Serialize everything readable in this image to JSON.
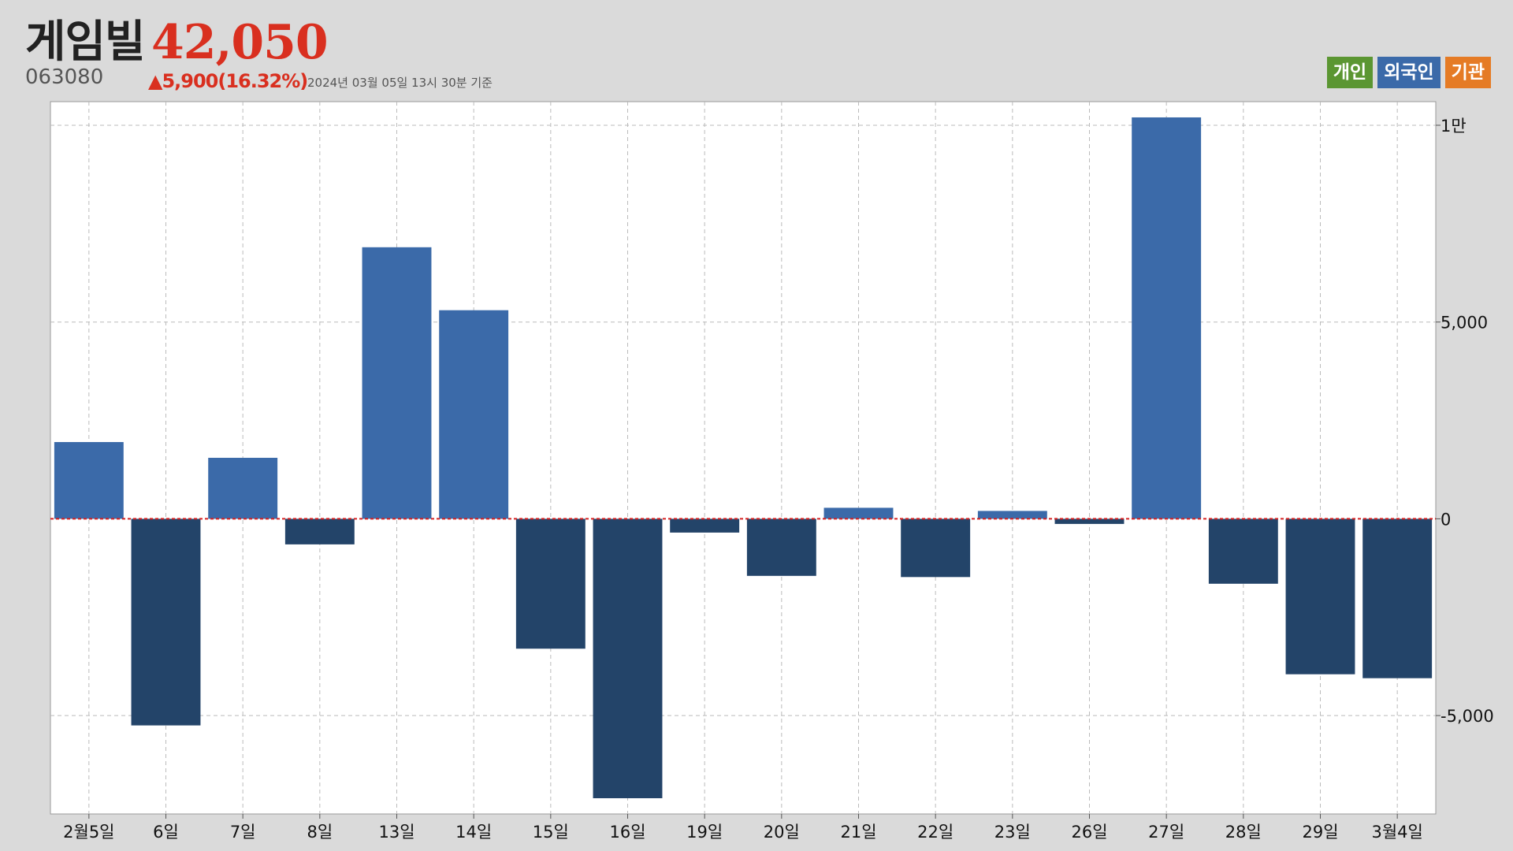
{
  "header": {
    "stock_name": "게임빌",
    "stock_code": "063080",
    "price": "42,050",
    "change": "▲5,900(16.32%)",
    "timestamp": "2024년 03월 05일 13시 30분 기준"
  },
  "legend": {
    "items": [
      {
        "label": "개인",
        "color": "#5b9632"
      },
      {
        "label": "외국인",
        "color": "#3b6aa9"
      },
      {
        "label": "기관",
        "color": "#e57b25"
      }
    ]
  },
  "colors": {
    "price_up": "#d92f1f",
    "positive_bar": "#3b6aa9",
    "negative_bar": "#234469",
    "zero_line": "#d62020",
    "grid": "#bbbbbb",
    "plot_bg": "#ffffff"
  },
  "chart_data": {
    "type": "bar",
    "series": [
      {
        "name": "외국인",
        "values": [
          1950,
          -5250,
          1550,
          -650,
          6900,
          5300,
          -3300,
          -7100,
          -350,
          -1450,
          280,
          -1480,
          200,
          -130,
          10200,
          -1650,
          -3950,
          -4050
        ]
      }
    ],
    "categories": [
      "2월5일",
      "6일",
      "7일",
      "8일",
      "13일",
      "14일",
      "15일",
      "16일",
      "19일",
      "20일",
      "21일",
      "22일",
      "23일",
      "26일",
      "27일",
      "28일",
      "29일",
      "3월4일"
    ],
    "ylim": [
      -7500,
      10600
    ],
    "yticks": [
      {
        "value": 10000,
        "label": "1만"
      },
      {
        "value": 5000,
        "label": "5,000"
      },
      {
        "value": 0,
        "label": "0"
      },
      {
        "value": -5000,
        "label": "-5,000"
      }
    ],
    "grid": true,
    "legend_position": "top-right"
  }
}
